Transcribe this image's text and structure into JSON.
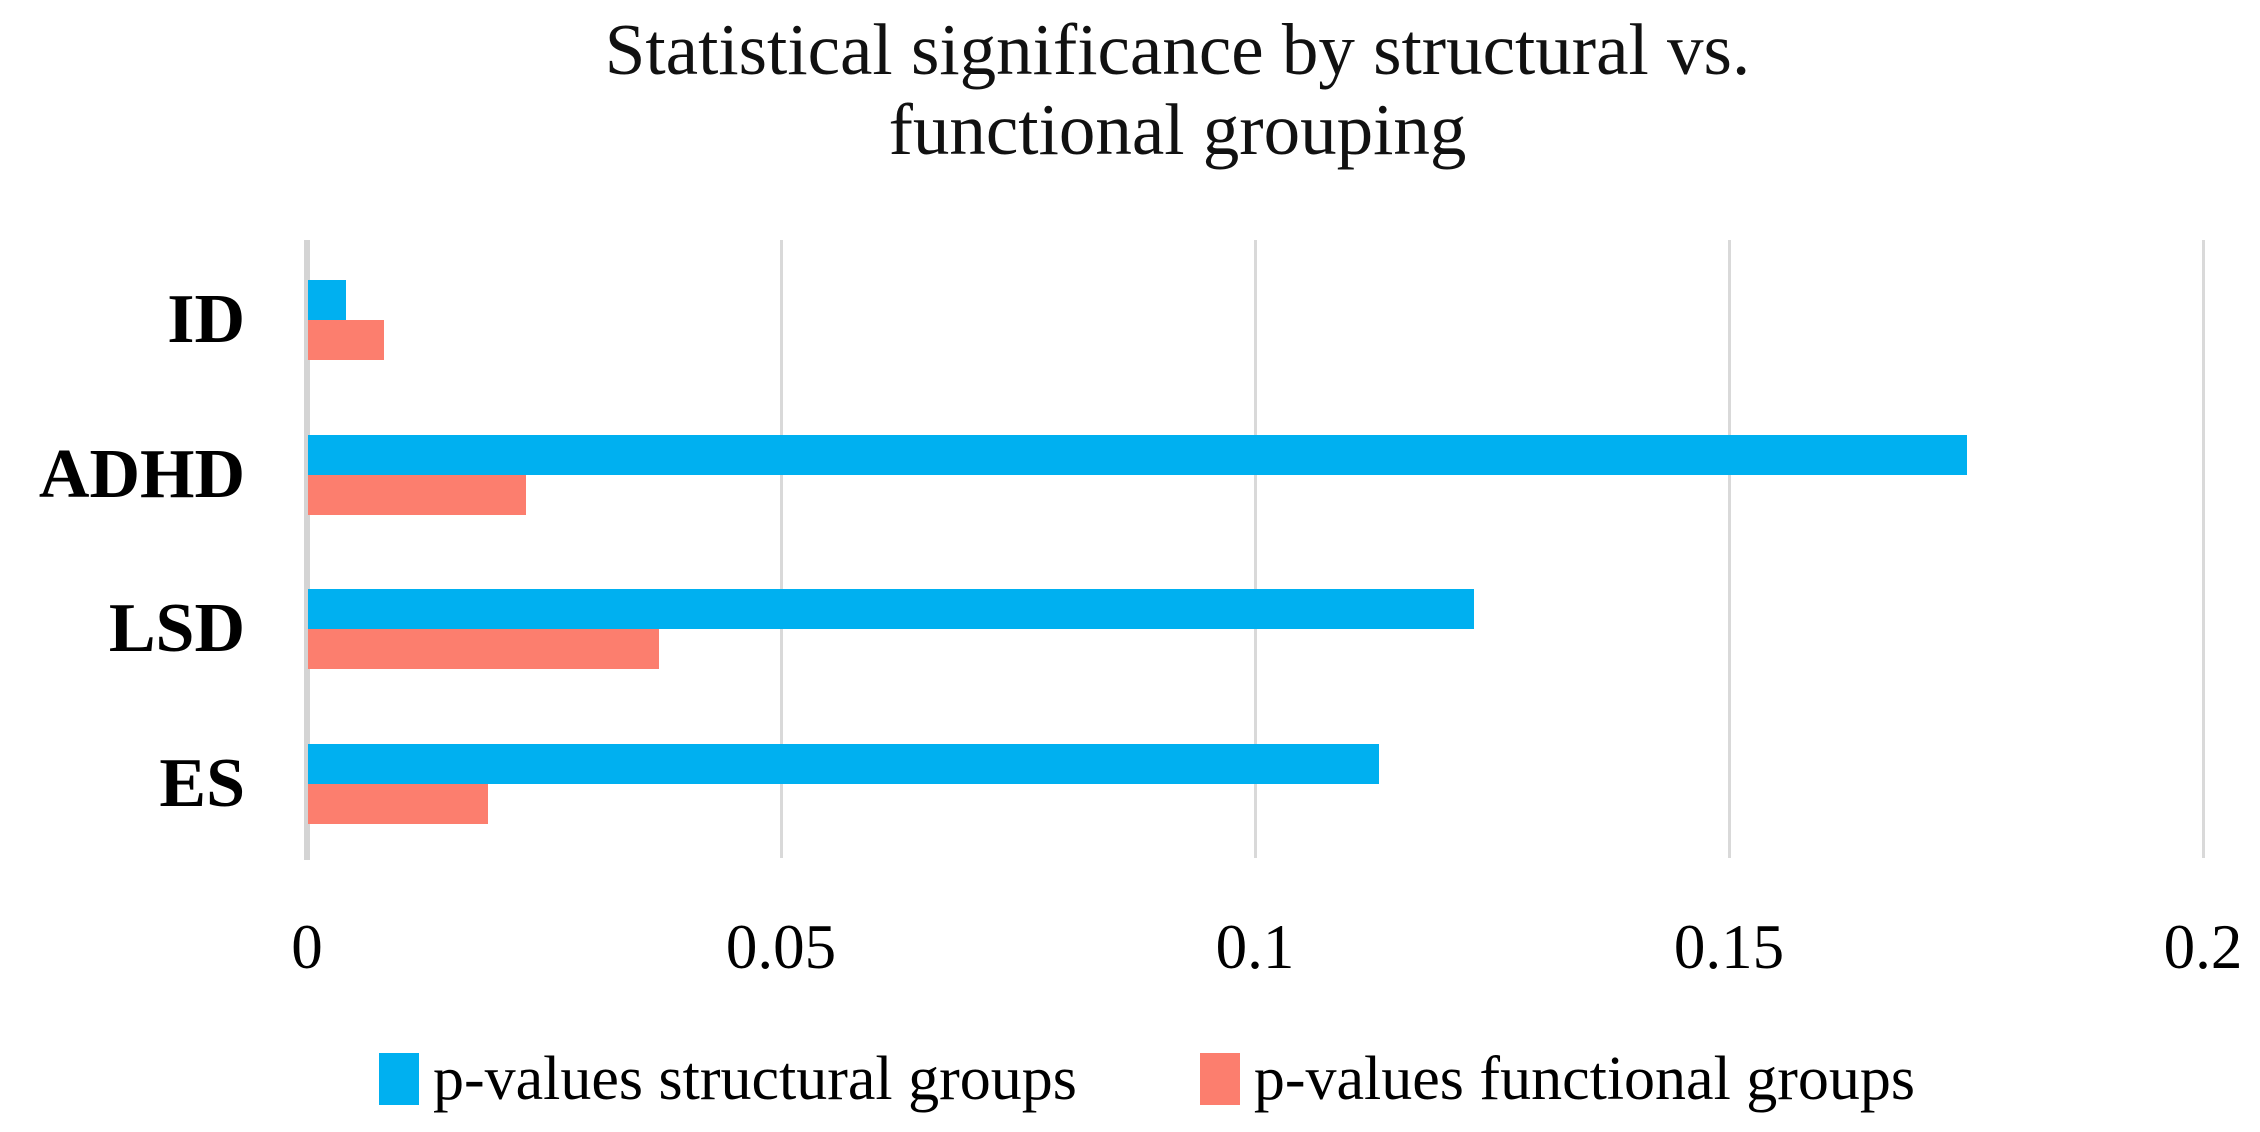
{
  "title": {
    "line1": "Statistical significance by structural vs.",
    "line2": "functional grouping"
  },
  "chart_data": {
    "type": "bar",
    "orientation": "horizontal",
    "title": "Statistical significance by structural vs. functional grouping",
    "categories": [
      "ID",
      "ADHD",
      "LSD",
      "ES"
    ],
    "series": [
      {
        "name": "p-values structural groups",
        "color": "#00B0F0",
        "values": [
          0.004,
          0.175,
          0.123,
          0.113
        ]
      },
      {
        "name": "p-values functional groups",
        "color": "#FC7E6E",
        "values": [
          0.008,
          0.023,
          0.037,
          0.019
        ]
      }
    ],
    "xlabel": "",
    "ylabel": "",
    "xlim": [
      0,
      0.2
    ],
    "xticks": [
      0,
      0.05,
      0.1,
      0.15,
      0.2
    ],
    "xtick_labels": [
      "0",
      "0.05",
      "0.1",
      "0.15",
      "0.2"
    ],
    "grid": true,
    "gridline_color": "#D9D9D9",
    "axis_line_color": "#D4D4D4",
    "legend_position": "bottom"
  },
  "legend": {
    "items": [
      {
        "label": "p-values structural groups",
        "color": "#00B0F0"
      },
      {
        "label": "p-values functional groups",
        "color": "#FC7E6E"
      }
    ]
  }
}
